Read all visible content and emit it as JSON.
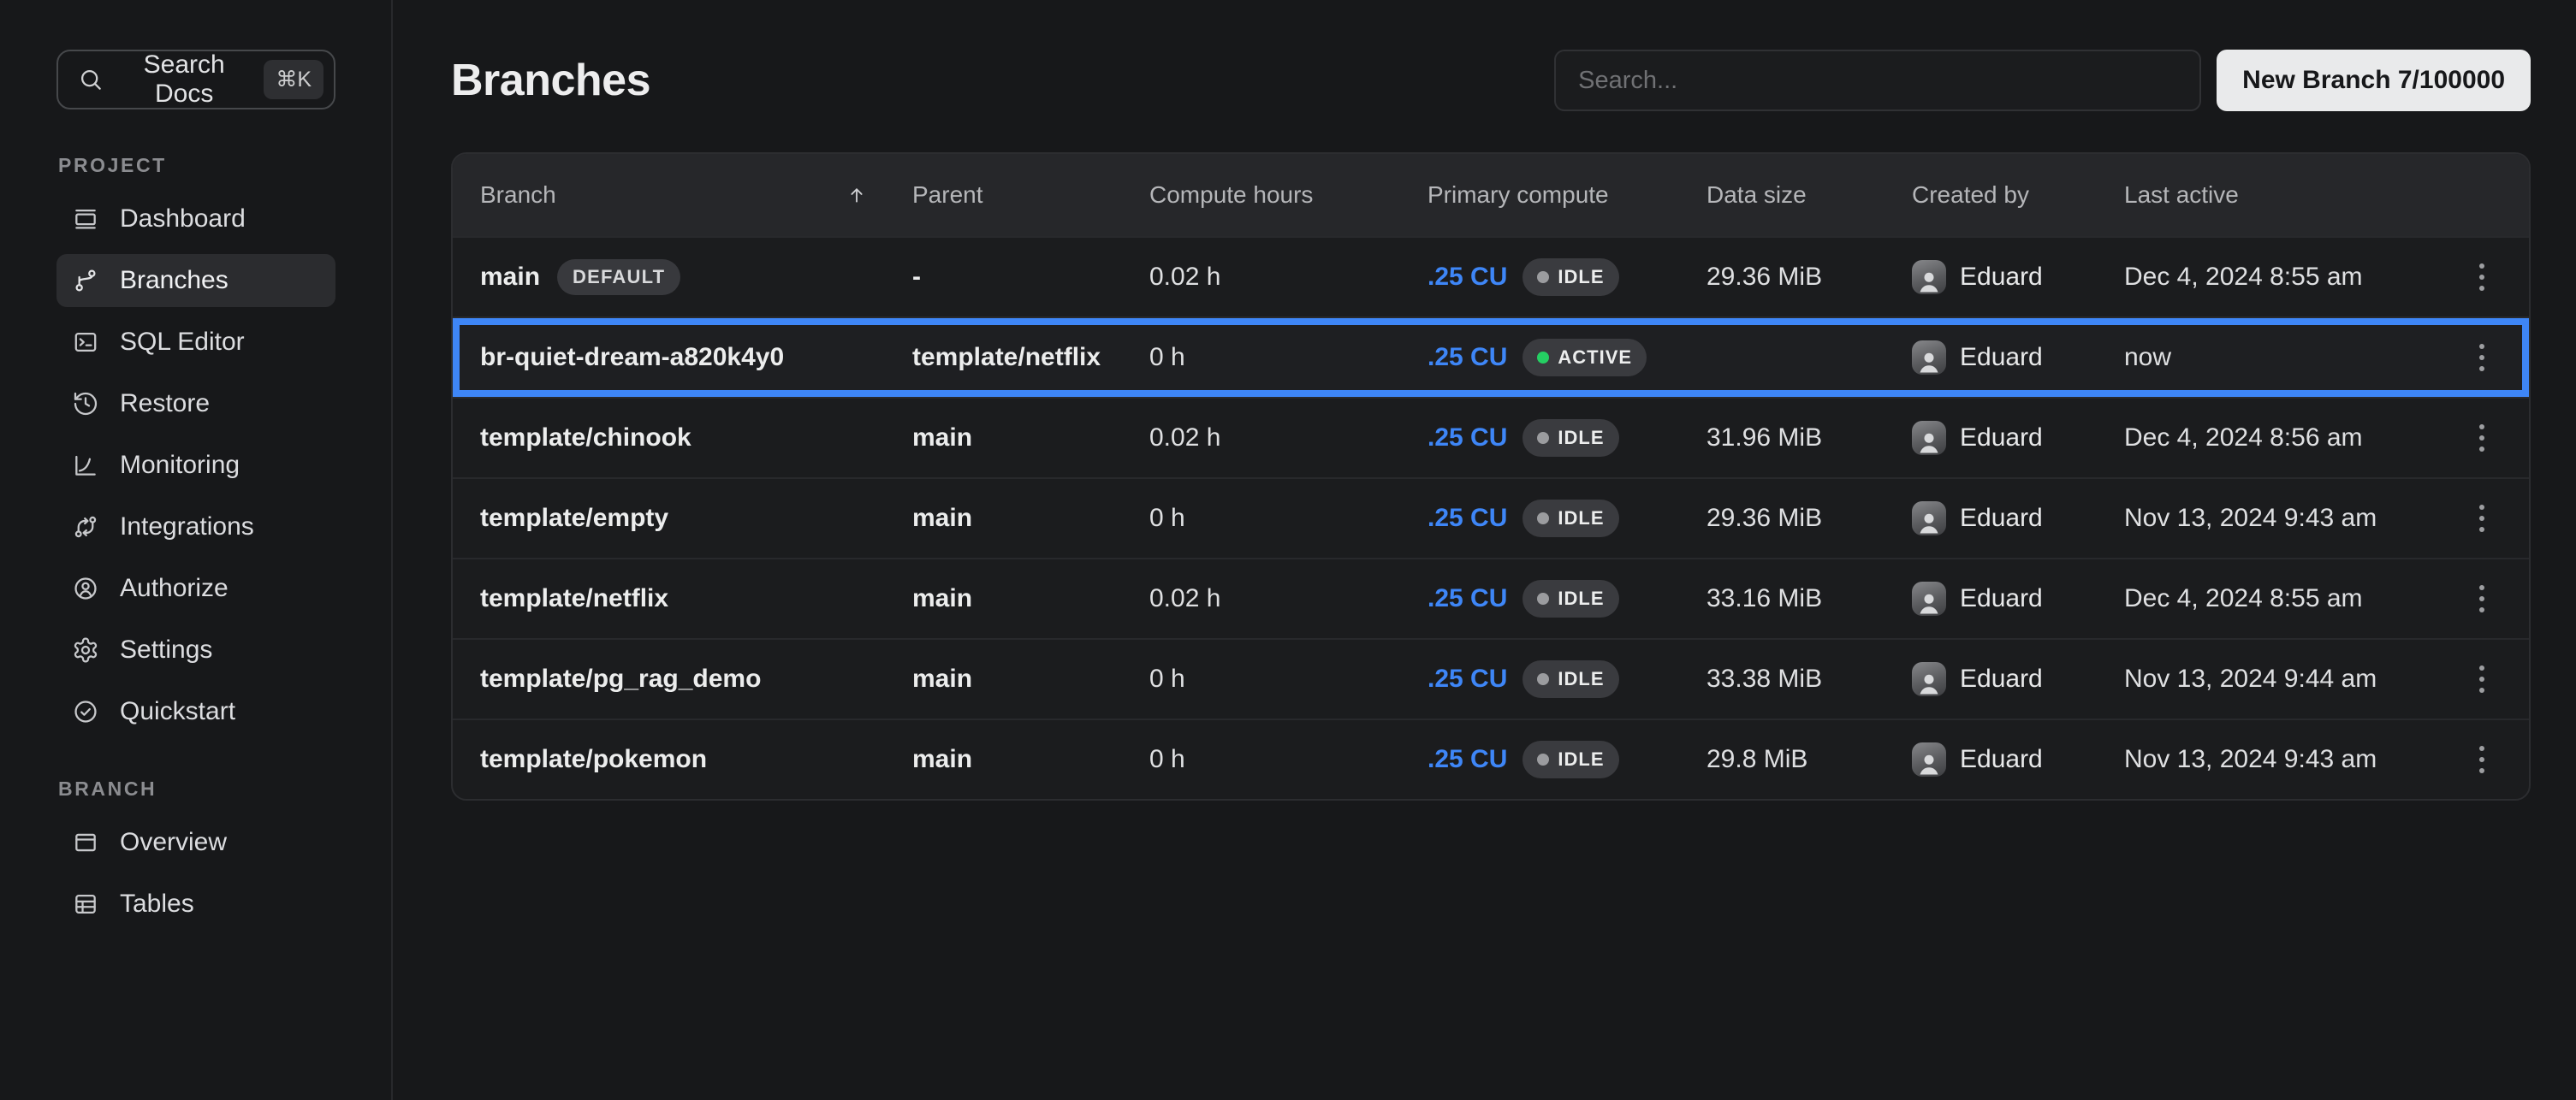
{
  "sidebar": {
    "search_docs": {
      "label": "Search Docs",
      "shortcut": "⌘K"
    },
    "sections": [
      {
        "label": "PROJECT",
        "items": [
          {
            "id": "dashboard",
            "label": "Dashboard",
            "icon": "dashboard-icon",
            "active": false
          },
          {
            "id": "branches",
            "label": "Branches",
            "icon": "branches-icon",
            "active": true
          },
          {
            "id": "sql-editor",
            "label": "SQL Editor",
            "icon": "sql-editor-icon",
            "active": false
          },
          {
            "id": "restore",
            "label": "Restore",
            "icon": "restore-icon",
            "active": false
          },
          {
            "id": "monitoring",
            "label": "Monitoring",
            "icon": "monitoring-icon",
            "active": false
          },
          {
            "id": "integrations",
            "label": "Integrations",
            "icon": "integrations-icon",
            "active": false
          },
          {
            "id": "authorize",
            "label": "Authorize",
            "icon": "authorize-icon",
            "active": false
          },
          {
            "id": "settings",
            "label": "Settings",
            "icon": "settings-icon",
            "active": false
          },
          {
            "id": "quickstart",
            "label": "Quickstart",
            "icon": "quickstart-icon",
            "active": false
          }
        ]
      },
      {
        "label": "BRANCH",
        "items": [
          {
            "id": "overview",
            "label": "Overview",
            "icon": "overview-icon",
            "active": false
          },
          {
            "id": "tables",
            "label": "Tables",
            "icon": "tables-icon",
            "active": false
          }
        ]
      }
    ]
  },
  "header": {
    "title": "Branches",
    "search_placeholder": "Search...",
    "new_branch_label": "New Branch 7/100000"
  },
  "table": {
    "columns": [
      {
        "key": "branch",
        "label": "Branch",
        "sort_ascending": true
      },
      {
        "key": "parent",
        "label": "Parent"
      },
      {
        "key": "compute_hours",
        "label": "Compute hours"
      },
      {
        "key": "primary_compute",
        "label": "Primary compute"
      },
      {
        "key": "data_size",
        "label": "Data size"
      },
      {
        "key": "created_by",
        "label": "Created by"
      },
      {
        "key": "last_active",
        "label": "Last active"
      }
    ],
    "rows": [
      {
        "branch": "main",
        "badge": "DEFAULT",
        "parent": "-",
        "compute_hours": "0.02 h",
        "compute_units": ".25 CU",
        "status": "IDLE",
        "data_size": "29.36 MiB",
        "created_by": "Eduard",
        "last_active": "Dec 4, 2024 8:55 am",
        "highlighted": false
      },
      {
        "branch": "br-quiet-dream-a820k4y0",
        "badge": "",
        "parent": "template/netflix",
        "compute_hours": "0 h",
        "compute_units": ".25 CU",
        "status": "ACTIVE",
        "data_size": "",
        "created_by": "Eduard",
        "last_active": "now",
        "highlighted": true
      },
      {
        "branch": "template/chinook",
        "badge": "",
        "parent": "main",
        "compute_hours": "0.02 h",
        "compute_units": ".25 CU",
        "status": "IDLE",
        "data_size": "31.96 MiB",
        "created_by": "Eduard",
        "last_active": "Dec 4, 2024 8:56 am",
        "highlighted": false
      },
      {
        "branch": "template/empty",
        "badge": "",
        "parent": "main",
        "compute_hours": "0 h",
        "compute_units": ".25 CU",
        "status": "IDLE",
        "data_size": "29.36 MiB",
        "created_by": "Eduard",
        "last_active": "Nov 13, 2024 9:43 am",
        "highlighted": false
      },
      {
        "branch": "template/netflix",
        "badge": "",
        "parent": "main",
        "compute_hours": "0.02 h",
        "compute_units": ".25 CU",
        "status": "IDLE",
        "data_size": "33.16 MiB",
        "created_by": "Eduard",
        "last_active": "Dec 4, 2024 8:55 am",
        "highlighted": false
      },
      {
        "branch": "template/pg_rag_demo",
        "badge": "",
        "parent": "main",
        "compute_hours": "0 h",
        "compute_units": ".25 CU",
        "status": "IDLE",
        "data_size": "33.38 MiB",
        "created_by": "Eduard",
        "last_active": "Nov 13, 2024 9:44 am",
        "highlighted": false
      },
      {
        "branch": "template/pokemon",
        "badge": "",
        "parent": "main",
        "compute_hours": "0 h",
        "compute_units": ".25 CU",
        "status": "IDLE",
        "data_size": "29.8 MiB",
        "created_by": "Eduard",
        "last_active": "Nov 13, 2024 9:43 am",
        "highlighted": false
      }
    ]
  },
  "colors": {
    "accent_blue": "#3e86f7",
    "status_active_green": "#25cf63",
    "status_idle_gray": "#9b9c9f"
  }
}
